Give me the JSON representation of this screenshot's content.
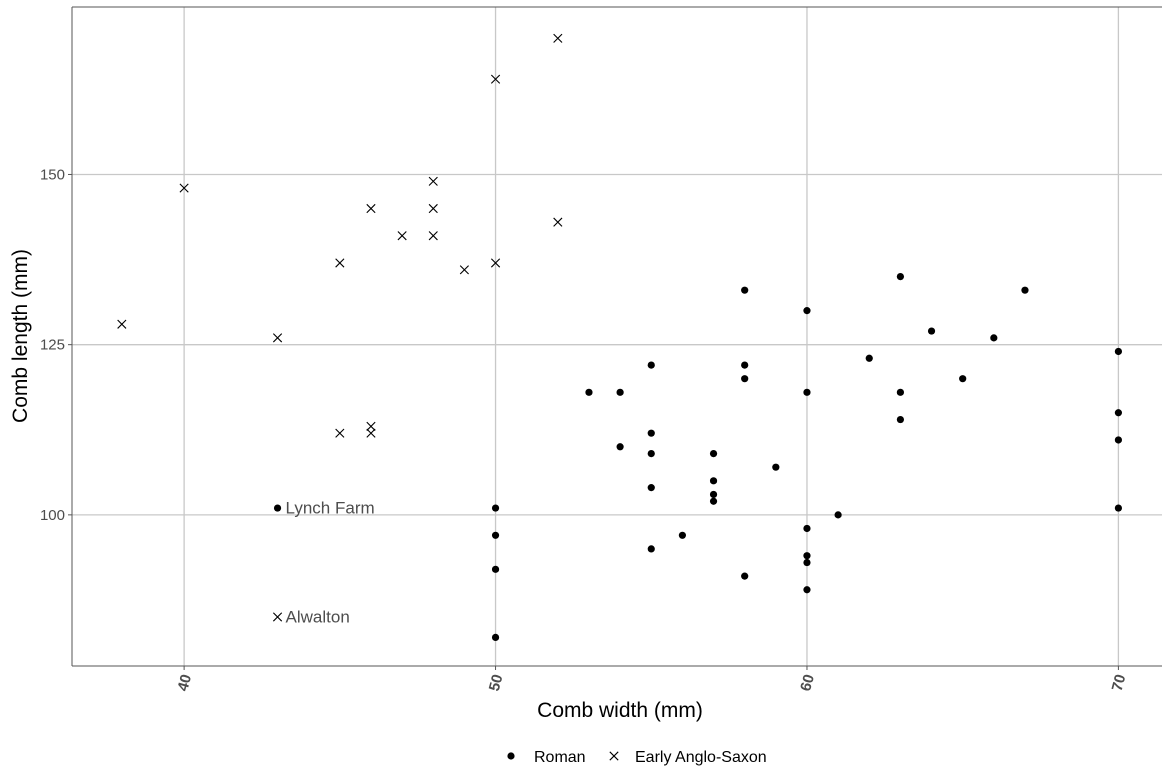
{
  "chart_data": {
    "type": "scatter",
    "title": "",
    "xlabel": "Comb width (mm)",
    "ylabel": "Comb length (mm)",
    "xlim": [
      36.4,
      71.4
    ],
    "ylim": [
      77.8,
      174.6
    ],
    "x_ticks": [
      40,
      50,
      60,
      70
    ],
    "y_ticks": [
      100,
      125,
      150
    ],
    "grid": true,
    "legend_position": "bottom",
    "series": [
      {
        "name": "Roman",
        "marker": "dot",
        "color": "#000000",
        "points": [
          [
            43,
            101
          ],
          [
            50,
            101
          ],
          [
            50,
            97
          ],
          [
            50,
            92
          ],
          [
            50,
            82
          ],
          [
            53,
            118
          ],
          [
            54,
            118
          ],
          [
            54,
            110
          ],
          [
            55,
            122
          ],
          [
            55,
            112
          ],
          [
            55,
            109
          ],
          [
            55,
            104
          ],
          [
            55,
            95
          ],
          [
            56,
            97
          ],
          [
            57,
            109
          ],
          [
            57,
            105
          ],
          [
            57,
            103
          ],
          [
            57,
            102
          ],
          [
            58,
            133
          ],
          [
            58,
            122
          ],
          [
            58,
            120
          ],
          [
            58,
            91
          ],
          [
            59,
            107
          ],
          [
            60,
            130
          ],
          [
            60,
            118
          ],
          [
            60,
            98
          ],
          [
            60,
            94
          ],
          [
            60,
            93
          ],
          [
            60,
            89
          ],
          [
            61,
            100
          ],
          [
            62,
            123
          ],
          [
            63,
            135
          ],
          [
            63,
            118
          ],
          [
            63,
            114
          ],
          [
            64,
            127
          ],
          [
            65,
            120
          ],
          [
            66,
            126
          ],
          [
            67,
            133
          ],
          [
            70,
            124
          ],
          [
            70,
            115
          ],
          [
            70,
            111
          ],
          [
            70,
            101
          ]
        ]
      },
      {
        "name": "Early Anglo-Saxon",
        "marker": "cross",
        "color": "#000000",
        "points": [
          [
            38,
            128
          ],
          [
            40,
            148
          ],
          [
            43,
            126
          ],
          [
            43,
            85
          ],
          [
            45,
            137
          ],
          [
            45,
            112
          ],
          [
            46,
            145
          ],
          [
            46,
            113
          ],
          [
            46,
            112
          ],
          [
            47,
            141
          ],
          [
            48,
            149
          ],
          [
            48,
            145
          ],
          [
            48,
            141
          ],
          [
            49,
            136
          ],
          [
            50,
            164
          ],
          [
            50,
            137
          ],
          [
            52,
            170
          ],
          [
            52,
            143
          ]
        ]
      }
    ],
    "annotations": [
      {
        "text": "Lynch Farm",
        "x": 43,
        "y": 101
      },
      {
        "text": "Alwalton",
        "x": 43,
        "y": 85
      }
    ]
  }
}
